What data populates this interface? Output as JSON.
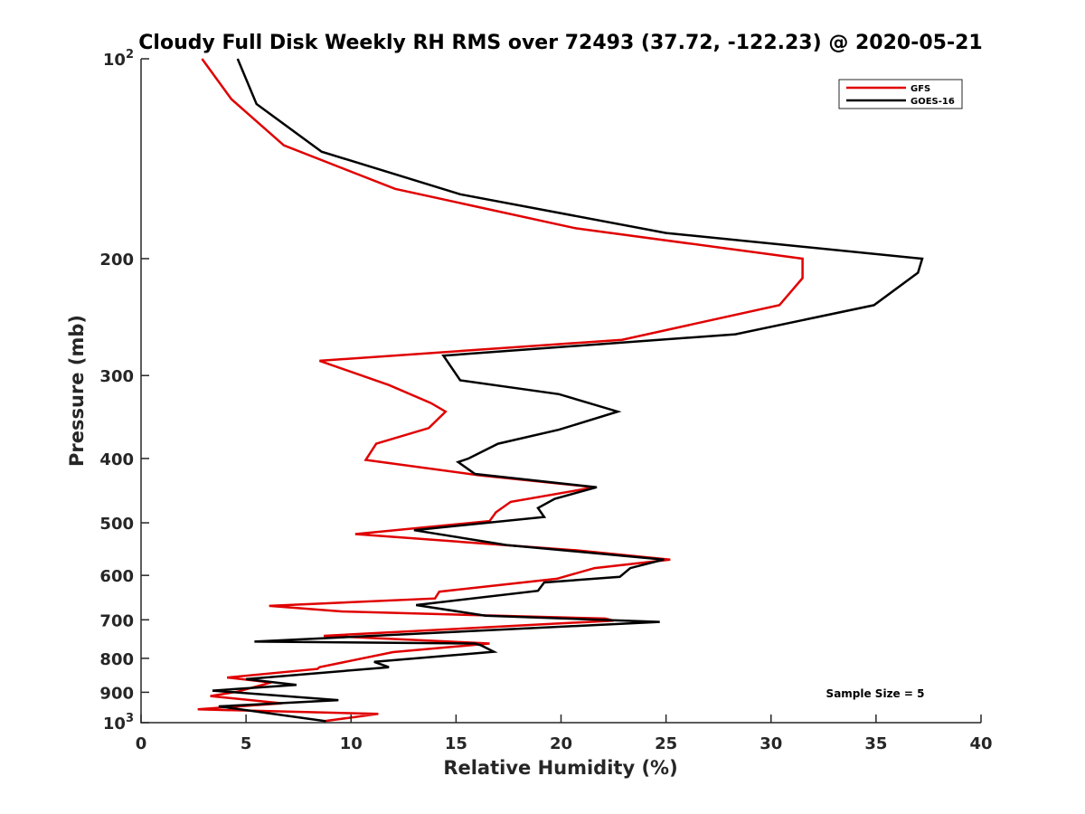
{
  "chart_data": {
    "type": "line",
    "title": "Cloudy Full Disk Weekly RH RMS over 72493 (37.72, -122.23) @ 2020-05-21",
    "xlabel": "Relative Humidity (%)",
    "ylabel": "Pressure (mb)",
    "xlim": [
      0,
      40
    ],
    "ylim": [
      100,
      1000
    ],
    "yscale": "log",
    "y_reversed": true,
    "x_ticks": [
      0,
      5,
      10,
      15,
      20,
      25,
      30,
      35,
      40
    ],
    "x_tick_labels": [
      "0",
      "5",
      "10",
      "15",
      "20",
      "25",
      "30",
      "35",
      "40"
    ],
    "y_ticks": [
      100,
      200,
      300,
      400,
      500,
      600,
      700,
      800,
      900,
      1000
    ],
    "y_tick_labels": [
      "10^2",
      "200",
      "300",
      "400",
      "500",
      "600",
      "700",
      "800",
      "900",
      "10^3"
    ],
    "legend_position": "top-right",
    "annotation": "Sample Size = 5",
    "series": [
      {
        "name": "GFS",
        "color": "#e00000",
        "points": [
          [
            2.9,
            100
          ],
          [
            4.3,
            115
          ],
          [
            6.8,
            135
          ],
          [
            12.1,
            157
          ],
          [
            20.7,
            180
          ],
          [
            31.5,
            200
          ],
          [
            31.5,
            214
          ],
          [
            30.4,
            235
          ],
          [
            22.9,
            265
          ],
          [
            8.5,
            285
          ],
          [
            11.8,
            310
          ],
          [
            13.8,
            330
          ],
          [
            14.5,
            340
          ],
          [
            13.7,
            360
          ],
          [
            11.2,
            380
          ],
          [
            10.7,
            402
          ],
          [
            16.1,
            424
          ],
          [
            21.6,
            442
          ],
          [
            17.6,
            465
          ],
          [
            16.9,
            482
          ],
          [
            16.6,
            497
          ],
          [
            10.2,
            520
          ],
          [
            20.7,
            550
          ],
          [
            25.2,
            568
          ],
          [
            21.6,
            585
          ],
          [
            19.8,
            607
          ],
          [
            14.2,
            635
          ],
          [
            14.0,
            650
          ],
          [
            6.1,
            667
          ],
          [
            9.6,
            680
          ],
          [
            22.1,
            697
          ],
          [
            22.5,
            702
          ],
          [
            8.7,
            740
          ],
          [
            14.7,
            755
          ],
          [
            16.6,
            760
          ],
          [
            12.0,
            783
          ],
          [
            8.5,
            825
          ],
          [
            8.4,
            830
          ],
          [
            4.1,
            855
          ],
          [
            6.2,
            870
          ],
          [
            4.6,
            898
          ],
          [
            3.3,
            912
          ],
          [
            6.7,
            935
          ],
          [
            2.7,
            955
          ],
          [
            11.3,
            970
          ],
          [
            8.7,
            995
          ]
        ]
      },
      {
        "name": "GOES-16",
        "color": "#000000",
        "points": [
          [
            4.6,
            100
          ],
          [
            5.5,
            117
          ],
          [
            8.6,
            138
          ],
          [
            15.2,
            160
          ],
          [
            25.0,
            183
          ],
          [
            37.2,
            200
          ],
          [
            37.0,
            210
          ],
          [
            34.9,
            235
          ],
          [
            28.3,
            260
          ],
          [
            14.4,
            280
          ],
          [
            15.2,
            305
          ],
          [
            19.9,
            320
          ],
          [
            22.7,
            340
          ],
          [
            19.9,
            362
          ],
          [
            17.0,
            380
          ],
          [
            15.6,
            400
          ],
          [
            15.1,
            405
          ],
          [
            15.9,
            422
          ],
          [
            21.7,
            442
          ],
          [
            19.7,
            460
          ],
          [
            18.9,
            475
          ],
          [
            19.2,
            490
          ],
          [
            13.0,
            513
          ],
          [
            17.4,
            540
          ],
          [
            24.9,
            568
          ],
          [
            23.3,
            585
          ],
          [
            22.8,
            603
          ],
          [
            19.2,
            615
          ],
          [
            18.9,
            633
          ],
          [
            13.1,
            665
          ],
          [
            16.4,
            690
          ],
          [
            24.7,
            705
          ],
          [
            5.4,
            755
          ],
          [
            15.9,
            760
          ],
          [
            16.2,
            765
          ],
          [
            16.8,
            782
          ],
          [
            11.1,
            810
          ],
          [
            11.8,
            825
          ],
          [
            5.0,
            860
          ],
          [
            7.4,
            877
          ],
          [
            3.4,
            895
          ],
          [
            9.4,
            925
          ],
          [
            3.7,
            945
          ],
          [
            8.8,
            995
          ]
        ]
      }
    ]
  }
}
